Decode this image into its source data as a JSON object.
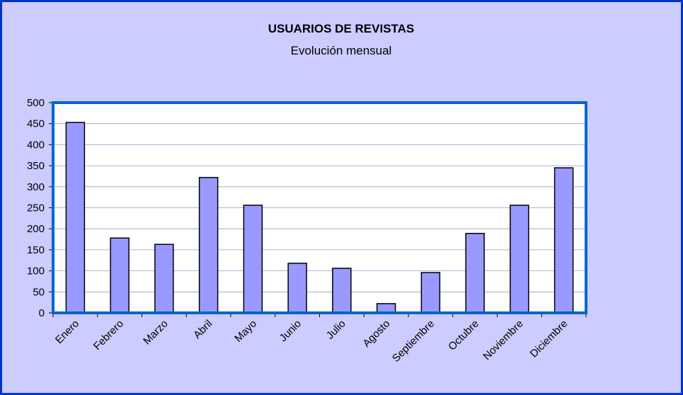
{
  "chart_data": {
    "type": "bar",
    "title": "USUARIOS DE REVISTAS",
    "subtitle": "Evolución mensual",
    "categories": [
      "Enero",
      "Febrero",
      "Marzo",
      "Abril",
      "Mayo",
      "Junio",
      "Julio",
      "Agosto",
      "Septiembre",
      "Octubre",
      "Noviembre",
      "Diciembre"
    ],
    "values": [
      453,
      178,
      163,
      322,
      256,
      118,
      106,
      22,
      96,
      189,
      256,
      345
    ],
    "color": "#9999ff",
    "ylim": [
      0,
      500
    ],
    "yticks": [
      0,
      50,
      100,
      150,
      200,
      250,
      300,
      350,
      400,
      450,
      500
    ],
    "grid": true
  }
}
